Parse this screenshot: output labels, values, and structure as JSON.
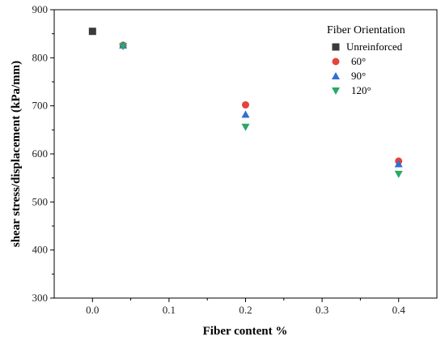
{
  "chart_data": {
    "type": "scatter",
    "xlabel": "Fiber content %",
    "ylabel": "shear stress/displacement (kPa/mm)",
    "xlim": [
      -0.05,
      0.45
    ],
    "ylim": [
      300,
      900
    ],
    "xticks": [
      0.0,
      0.1,
      0.2,
      0.3,
      0.4
    ],
    "xtick_labels": [
      "0.0",
      "0.1",
      "0.2",
      "0.3",
      "0.4"
    ],
    "yticks": [
      300,
      400,
      500,
      600,
      700,
      800,
      900
    ],
    "ytick_labels": [
      "300",
      "400",
      "500",
      "600",
      "700",
      "800",
      "900"
    ],
    "grid": false,
    "legend": {
      "title": "Fiber Orientation",
      "placement": "top-right"
    },
    "series": [
      {
        "name": "Unreinforced",
        "marker": "square",
        "color": "#3a3a3a",
        "points": [
          {
            "x": 0.0,
            "y": 855
          }
        ]
      },
      {
        "name": "60°",
        "marker": "circle",
        "color": "#e8413c",
        "points": [
          {
            "x": 0.04,
            "y": 826
          },
          {
            "x": 0.2,
            "y": 702
          },
          {
            "x": 0.4,
            "y": 585
          }
        ]
      },
      {
        "name": "90°",
        "marker": "triangle-up",
        "color": "#2f6fd6",
        "points": [
          {
            "x": 0.04,
            "y": 826
          },
          {
            "x": 0.2,
            "y": 682
          },
          {
            "x": 0.4,
            "y": 579
          }
        ]
      },
      {
        "name": "120°",
        "marker": "triangle-down",
        "color": "#2ca866",
        "points": [
          {
            "x": 0.04,
            "y": 824
          },
          {
            "x": 0.2,
            "y": 656
          },
          {
            "x": 0.4,
            "y": 558
          }
        ]
      }
    ]
  }
}
